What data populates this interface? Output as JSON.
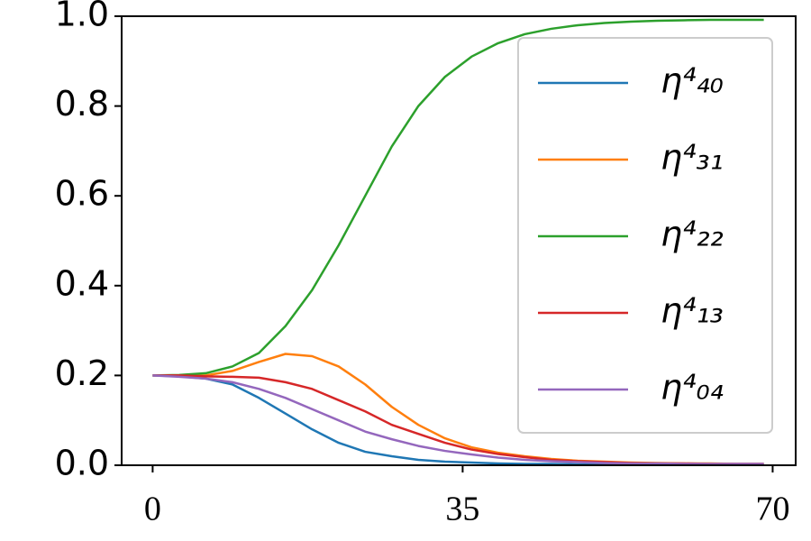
{
  "chart_data": {
    "type": "line",
    "x": [
      0,
      3,
      6,
      9,
      12,
      15,
      18,
      21,
      24,
      27,
      30,
      33,
      36,
      39,
      42,
      45,
      48,
      51,
      54,
      57,
      60,
      63,
      66,
      69
    ],
    "series": [
      {
        "name": "η⁴₄₀",
        "color": "#1f77b4",
        "values": [
          0.2,
          0.198,
          0.193,
          0.18,
          0.15,
          0.115,
          0.08,
          0.05,
          0.03,
          0.02,
          0.012,
          0.008,
          0.006,
          0.004,
          0.003,
          0.003,
          0.002,
          0.002,
          0.002,
          0.002,
          0.002,
          0.002,
          0.002,
          0.002
        ]
      },
      {
        "name": "η⁴₃₁",
        "color": "#ff7f0e",
        "values": [
          0.2,
          0.2,
          0.2,
          0.21,
          0.23,
          0.248,
          0.243,
          0.22,
          0.18,
          0.13,
          0.09,
          0.06,
          0.04,
          0.028,
          0.02,
          0.014,
          0.01,
          0.008,
          0.006,
          0.005,
          0.004,
          0.004,
          0.003,
          0.003
        ]
      },
      {
        "name": "η⁴₂₂",
        "color": "#2ca02c",
        "values": [
          0.2,
          0.201,
          0.205,
          0.22,
          0.25,
          0.31,
          0.39,
          0.49,
          0.6,
          0.71,
          0.8,
          0.865,
          0.91,
          0.94,
          0.96,
          0.972,
          0.98,
          0.985,
          0.988,
          0.99,
          0.991,
          0.992,
          0.992,
          0.992
        ]
      },
      {
        "name": "η⁴₁₃",
        "color": "#d62728",
        "values": [
          0.2,
          0.2,
          0.198,
          0.197,
          0.195,
          0.185,
          0.17,
          0.145,
          0.12,
          0.09,
          0.07,
          0.05,
          0.035,
          0.025,
          0.018,
          0.012,
          0.009,
          0.007,
          0.005,
          0.004,
          0.004,
          0.003,
          0.003,
          0.003
        ]
      },
      {
        "name": "η⁴₀₄",
        "color": "#9467bd",
        "values": [
          0.2,
          0.197,
          0.193,
          0.185,
          0.17,
          0.15,
          0.125,
          0.1,
          0.075,
          0.058,
          0.043,
          0.032,
          0.024,
          0.017,
          0.012,
          0.009,
          0.007,
          0.005,
          0.004,
          0.004,
          0.003,
          0.003,
          0.003,
          0.003
        ]
      }
    ],
    "xlim": [
      -3.5,
      72.6
    ],
    "xticks": [
      0,
      35,
      70
    ],
    "ylim": [
      0,
      1
    ],
    "yticks": [
      {
        "value": 0,
        "label": "0.0"
      },
      0.2,
      0.4,
      0.6,
      0.8,
      {
        "value": 1,
        "label": "1.0"
      }
    ],
    "legend": "upper-right",
    "grid": false
  }
}
